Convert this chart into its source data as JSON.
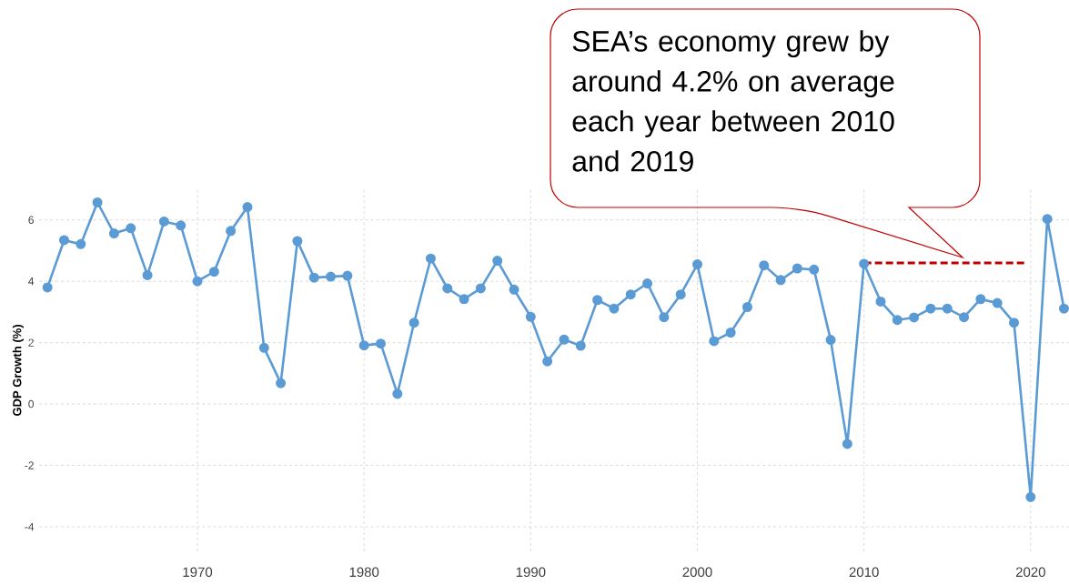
{
  "chart_data": {
    "type": "line",
    "ylabel": "GDP Growth (%)",
    "annotations": [
      "SEA’s economy grew by around 4.2% on average each year between 2010 and 2019"
    ],
    "x": [
      1961,
      1962,
      1963,
      1964,
      1965,
      1966,
      1967,
      1968,
      1969,
      1970,
      1971,
      1972,
      1973,
      1974,
      1975,
      1976,
      1977,
      1978,
      1979,
      1980,
      1981,
      1982,
      1983,
      1984,
      1985,
      1986,
      1987,
      1988,
      1989,
      1990,
      1991,
      1992,
      1993,
      1994,
      1995,
      1996,
      1997,
      1998,
      1999,
      2000,
      2001,
      2002,
      2003,
      2004,
      2005,
      2006,
      2007,
      2008,
      2009,
      2010,
      2011,
      2012,
      2013,
      2014,
      2015,
      2016,
      2017,
      2018,
      2019,
      2020,
      2021,
      2022
    ],
    "series": [
      {
        "color": "#5b9bd5",
        "values": [
          3.8,
          5.34,
          5.21,
          6.57,
          5.56,
          5.73,
          4.2,
          5.95,
          5.82,
          4.0,
          4.31,
          5.64,
          6.42,
          1.83,
          0.68,
          5.31,
          4.12,
          4.15,
          4.18,
          1.91,
          1.97,
          0.33,
          2.65,
          4.74,
          3.77,
          3.42,
          3.77,
          4.67,
          3.73,
          2.84,
          1.39,
          2.1,
          1.9,
          3.39,
          3.11,
          3.57,
          3.93,
          2.83,
          3.57,
          4.55,
          2.05,
          2.33,
          3.16,
          4.52,
          4.04,
          4.42,
          4.38,
          2.09,
          -1.3,
          4.57,
          3.34,
          2.74,
          2.82,
          3.11,
          3.11,
          2.83,
          3.42,
          3.29,
          2.65,
          -3.03,
          6.03,
          3.11
        ]
      },
      {
        "type": "line",
        "color": "#c00000",
        "x": [
          2010,
          2019.7
        ],
        "values": [
          4.6,
          4.6
        ],
        "marker": "none",
        "line_style": "dashed"
      }
    ],
    "marker": "circle",
    "line_style": "solid",
    "grid": true,
    "xlim": [
      1960.5,
      2022.3
    ],
    "ylim": [
      -4.8,
      7
    ],
    "xticks": [
      1970,
      1980,
      1990,
      2000,
      2010,
      2020
    ],
    "yticks": [
      -4,
      -2,
      0,
      2,
      4,
      6
    ]
  }
}
